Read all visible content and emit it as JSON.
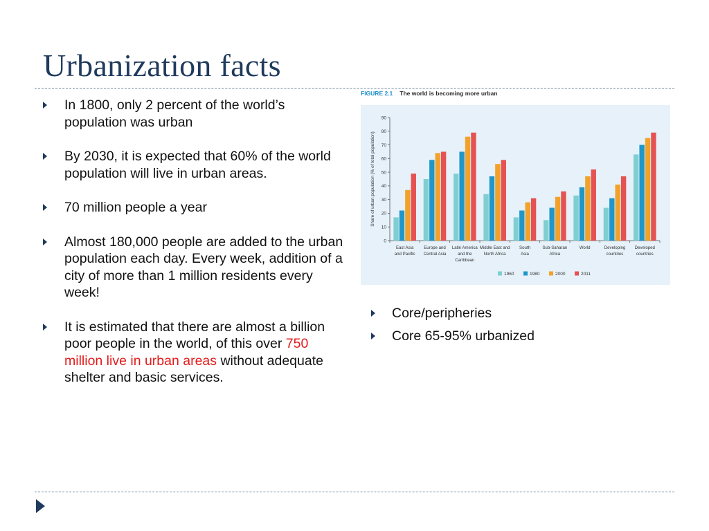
{
  "slide": {
    "title": "Urbanization facts"
  },
  "bullets": [
    {
      "text": "In 1800, only 2 percent of the world’s population was urban"
    },
    {
      "text": "By 2030, it is expected that 60% of the world population will live in urban areas."
    },
    {
      "text": "70 million people a year"
    },
    {
      "text": "Almost 180,000 people are added to the urban population each day. Every week, addition of a city of more than 1 million residents every week!"
    },
    {
      "pre": "It is estimated that there are almost a billion poor people in the world, of this over ",
      "highlight": "750 million live in urban areas",
      "post": " without adequate shelter and basic services."
    }
  ],
  "right_bullets": [
    {
      "text": "Core/peripheries"
    },
    {
      "text": "Core 65-95% urbanized"
    }
  ],
  "figure": {
    "number": "FIGURE 2.1",
    "caption": "The world is becoming more urban"
  },
  "colors": {
    "title": "#1f3a5c",
    "bullet_arrow": "#1f3a5c",
    "highlight": "#e21b1b",
    "chart_bg": "#e6f1f9"
  },
  "chart_data": {
    "type": "bar",
    "ylabel": "Share of urban population (% of total population)",
    "ylim": [
      0,
      90
    ],
    "yticks": [
      0,
      10,
      20,
      30,
      40,
      50,
      60,
      70,
      80,
      90
    ],
    "grid": false,
    "legend_position": "bottom",
    "categories": [
      "East Asia\nand Pacific",
      "Europe and\nCentral Asia",
      "Latin America\nand the\nCaribbean",
      "Middle East and\nNorth Africa",
      "South\nAsia",
      "Sub-Saharan\nAfrica",
      "World",
      "Developing\ncountries",
      "Developed\ncountries"
    ],
    "series": [
      {
        "name": "1960",
        "color": "#7fcfd0",
        "values": [
          17,
          45,
          49,
          34,
          17,
          15,
          33,
          24,
          63
        ]
      },
      {
        "name": "1980",
        "color": "#1f97c9",
        "values": [
          22,
          59,
          65,
          47,
          22,
          24,
          39,
          31,
          70
        ]
      },
      {
        "name": "2000",
        "color": "#f2a22a",
        "values": [
          37,
          64,
          76,
          56,
          28,
          32,
          47,
          41,
          75
        ]
      },
      {
        "name": "2011",
        "color": "#e65252",
        "values": [
          49,
          65,
          79,
          59,
          31,
          36,
          52,
          47,
          79
        ]
      }
    ]
  }
}
